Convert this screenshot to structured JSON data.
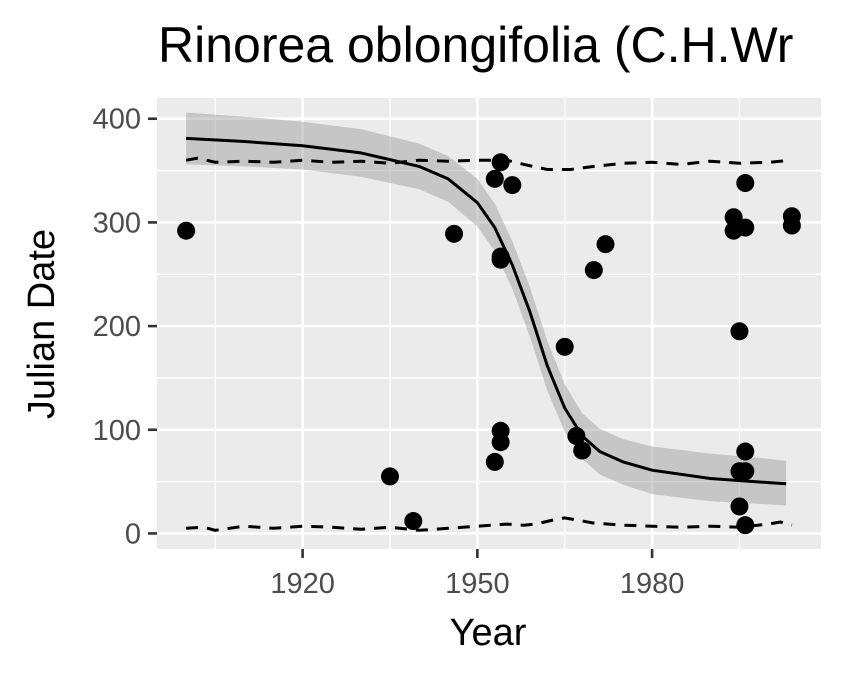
{
  "chart_data": {
    "type": "scatter",
    "title": "Rinorea oblongifolia (C.H.Wr",
    "xlabel": "Year",
    "ylabel": "Julian Date",
    "xlim": [
      1895,
      2009
    ],
    "ylim": [
      -15,
      420
    ],
    "x_ticks": [
      1920,
      1950,
      1980
    ],
    "x_tick_labels": [
      "1920",
      "1950",
      "1980"
    ],
    "y_ticks": [
      0,
      100,
      200,
      300,
      400
    ],
    "y_tick_labels": [
      "0",
      "100",
      "200",
      "300",
      "400"
    ],
    "grid": true,
    "panel_background": "#ebebeb",
    "points": [
      {
        "x": 1900,
        "y": 292
      },
      {
        "x": 1935,
        "y": 55
      },
      {
        "x": 1939,
        "y": 12
      },
      {
        "x": 1946,
        "y": 289
      },
      {
        "x": 1953,
        "y": 342
      },
      {
        "x": 1953,
        "y": 69
      },
      {
        "x": 1954,
        "y": 358
      },
      {
        "x": 1954,
        "y": 264
      },
      {
        "x": 1954,
        "y": 267
      },
      {
        "x": 1954,
        "y": 99
      },
      {
        "x": 1954,
        "y": 88
      },
      {
        "x": 1956,
        "y": 336
      },
      {
        "x": 1965,
        "y": 180
      },
      {
        "x": 1967,
        "y": 94
      },
      {
        "x": 1968,
        "y": 80
      },
      {
        "x": 1970,
        "y": 254
      },
      {
        "x": 1972,
        "y": 279
      },
      {
        "x": 1994,
        "y": 305
      },
      {
        "x": 1994,
        "y": 292
      },
      {
        "x": 1995,
        "y": 195
      },
      {
        "x": 1995,
        "y": 60
      },
      {
        "x": 1995,
        "y": 26
      },
      {
        "x": 1996,
        "y": 338
      },
      {
        "x": 1996,
        "y": 295
      },
      {
        "x": 1996,
        "y": 79
      },
      {
        "x": 1996,
        "y": 60
      },
      {
        "x": 1996,
        "y": 8
      },
      {
        "x": 2004,
        "y": 306
      },
      {
        "x": 2004,
        "y": 297
      }
    ],
    "fit_line": {
      "x": [
        1900,
        1910,
        1920,
        1930,
        1940,
        1945,
        1950,
        1953,
        1956,
        1959,
        1962,
        1965,
        1968,
        1971,
        1975,
        1980,
        1990,
        2000,
        2003
      ],
      "y": [
        381,
        378,
        374,
        367,
        354,
        342,
        319,
        295,
        259,
        214,
        162,
        121,
        94,
        79,
        69,
        61,
        53,
        49,
        48
      ]
    },
    "confidence_band": {
      "x": [
        1900,
        1910,
        1920,
        1930,
        1940,
        1945,
        1950,
        1953,
        1956,
        1959,
        1962,
        1965,
        1968,
        1971,
        1975,
        1980,
        1990,
        2000,
        2003
      ],
      "upper": [
        406,
        402,
        397,
        390,
        376,
        364,
        342,
        318,
        282,
        238,
        186,
        144,
        116,
        101,
        91,
        84,
        77,
        72,
        70
      ],
      "lower": [
        356,
        354,
        351,
        344,
        332,
        320,
        296,
        272,
        236,
        190,
        138,
        98,
        72,
        57,
        47,
        38,
        31,
        28,
        27
      ]
    },
    "upper_dashed": {
      "x": [
        1900,
        1902,
        1905,
        1910,
        1915,
        1920,
        1925,
        1930,
        1935,
        1940,
        1945,
        1950,
        1955,
        1958,
        1962,
        1966,
        1970,
        1975,
        1980,
        1985,
        1990,
        1995,
        2000,
        2004
      ],
      "y": [
        360,
        362,
        358,
        359,
        358,
        360,
        358,
        359,
        357,
        360,
        359,
        360,
        360,
        356,
        351,
        351,
        354,
        357,
        358,
        356,
        359,
        357,
        358,
        360
      ]
    },
    "lower_dashed": {
      "x": [
        1900,
        1903,
        1905,
        1910,
        1915,
        1920,
        1925,
        1930,
        1935,
        1940,
        1945,
        1950,
        1955,
        1958,
        1960,
        1963,
        1965,
        1968,
        1970,
        1975,
        1980,
        1985,
        1990,
        1995,
        2000,
        2002,
        2004
      ],
      "y": [
        5,
        6,
        3,
        7,
        5,
        7,
        6,
        4,
        6,
        3,
        5,
        7,
        9,
        8,
        9,
        13,
        15,
        12,
        10,
        8,
        7,
        6,
        7,
        6,
        9,
        11,
        8
      ]
    }
  }
}
